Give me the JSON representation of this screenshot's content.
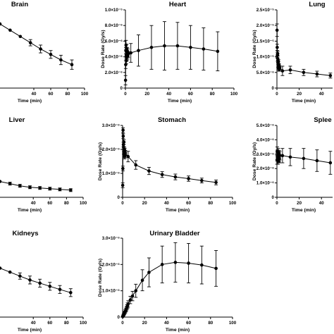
{
  "chart_data": [
    {
      "type": "scatter",
      "title": "Brain",
      "xlabel": "Time (min)",
      "ylabel": "",
      "xlim": [
        0,
        100
      ],
      "xticks": [
        40,
        60,
        80,
        100
      ],
      "ylim": [
        0,
        1.0
      ],
      "yticks": [],
      "yticklabels": [],
      "grid": false,
      "series": [
        {
          "x": [
            0,
            12,
            24,
            36,
            48,
            60,
            72,
            85
          ],
          "y": [
            0.82,
            0.74,
            0.66,
            0.58,
            0.5,
            0.43,
            0.36,
            0.3
          ],
          "err": [
            0,
            0,
            0,
            0.04,
            0.05,
            0.05,
            0.06,
            0.06
          ]
        }
      ]
    },
    {
      "type": "scatter",
      "title": "Heart",
      "xlabel": "Time (min)",
      "ylabel": "Dose Rate (Gy/s)",
      "xlim": [
        0,
        100
      ],
      "xticks": [
        0,
        20,
        40,
        60,
        80,
        100
      ],
      "ylim": [
        0,
        1.0
      ],
      "yticks": [
        0,
        0.2,
        0.4,
        0.6,
        0.8,
        1.0
      ],
      "yticklabels": [
        "0",
        "2.0×10⁻⁶",
        "4.0×10⁻⁶",
        "6.0×10⁻⁶",
        "8.0×10⁻⁶",
        "1.0×10⁻⁵"
      ],
      "grid": false,
      "series": [
        {
          "x": [
            0.1,
            0.25,
            0.4,
            0.55,
            0.7,
            0.85,
            1.0,
            1.2,
            1.4,
            1.6,
            1.8,
            2.0,
            2.2,
            2.5,
            5,
            12,
            24,
            36,
            48,
            60,
            72,
            85
          ],
          "y": [
            0.1,
            0.3,
            0.48,
            0.55,
            0.42,
            0.35,
            0.46,
            0.5,
            0.4,
            0.44,
            0.47,
            0.41,
            0.45,
            0.43,
            0.45,
            0.48,
            0.52,
            0.54,
            0.54,
            0.52,
            0.5,
            0.47
          ],
          "err": [
            0.06,
            0.05,
            0.04,
            0.06,
            0.05,
            0.04,
            0.05,
            0.06,
            0.05,
            0.04,
            0.05,
            0.04,
            0.05,
            0.04,
            0.12,
            0.2,
            0.28,
            0.31,
            0.3,
            0.28,
            0.27,
            0.25
          ]
        }
      ]
    },
    {
      "type": "scatter",
      "title": "Lung",
      "xlabel": "Time (min)",
      "ylabel": "Dose Rate (Gy/s)",
      "xlim": [
        0,
        50
      ],
      "xticks": [
        0,
        20,
        40
      ],
      "ylim": [
        0,
        2.5
      ],
      "yticks": [
        0,
        0.5,
        1.0,
        1.5,
        2.0,
        2.5
      ],
      "yticklabels": [
        "0",
        "5.0×10⁻⁶",
        "1.0×10⁻⁵",
        "1.5×10⁻⁵",
        "2.0×10⁻⁵",
        "2.5×10⁻⁵"
      ],
      "grid": false,
      "series": [
        {
          "x": [
            0.1,
            0.25,
            0.4,
            0.55,
            0.7,
            0.85,
            1.0,
            1.2,
            1.4,
            1.6,
            1.8,
            2.0,
            2.2,
            2.5,
            5,
            12,
            24,
            36,
            48
          ],
          "y": [
            1.85,
            1.3,
            1.05,
            0.95,
            1.1,
            0.88,
            0.75,
            0.7,
            0.85,
            0.62,
            0.66,
            0.72,
            0.6,
            0.65,
            0.55,
            0.58,
            0.5,
            0.45,
            0.4
          ],
          "err": [
            0.2,
            0.1,
            0.08,
            0.09,
            0.08,
            0.07,
            0.08,
            0.07,
            0.06,
            0.07,
            0.06,
            0.05,
            0.06,
            0.05,
            0.15,
            0.12,
            0.1,
            0.09,
            0.08
          ]
        }
      ]
    },
    {
      "type": "scatter",
      "title": "Liver",
      "xlabel": "Time (min)",
      "ylabel": "",
      "xlim": [
        0,
        100
      ],
      "xticks": [
        40,
        60,
        80,
        100
      ],
      "ylim": [
        0,
        1.0
      ],
      "yticks": [],
      "yticklabels": [],
      "grid": false,
      "series": [
        {
          "x": [
            0,
            12,
            24,
            36,
            48,
            60,
            72,
            85
          ],
          "y": [
            0.22,
            0.19,
            0.16,
            0.14,
            0.13,
            0.12,
            0.11,
            0.1
          ],
          "err": [
            0,
            0.02,
            0.02,
            0.02,
            0.02,
            0.02,
            0.02,
            0.02
          ]
        }
      ]
    },
    {
      "type": "scatter",
      "title": "Stomach",
      "xlabel": "Time (min)",
      "ylabel": "Dose Rate (Gy/s)",
      "xlim": [
        0,
        100
      ],
      "xticks": [
        0,
        20,
        40,
        60,
        80,
        100
      ],
      "ylim": [
        0,
        3.0
      ],
      "yticks": [
        0,
        1.0,
        2.0,
        3.0
      ],
      "yticklabels": [
        "0",
        "1.0×10⁻⁶",
        "2.0×10⁻⁶",
        "3.0×10⁻⁶"
      ],
      "grid": false,
      "series": [
        {
          "x": [
            0.1,
            0.25,
            0.4,
            0.55,
            0.7,
            0.85,
            1.0,
            1.2,
            1.4,
            1.6,
            1.8,
            2.0,
            2.2,
            2.5,
            5,
            12,
            24,
            36,
            48,
            60,
            72,
            85
          ],
          "y": [
            0.5,
            1.2,
            2.8,
            2.55,
            2.2,
            2.1,
            1.9,
            2.3,
            1.8,
            2.0,
            1.7,
            1.95,
            1.75,
            1.85,
            1.7,
            1.35,
            1.1,
            0.95,
            0.85,
            0.78,
            0.7,
            0.62
          ],
          "err": [
            0.1,
            0.1,
            0.1,
            0.1,
            0.1,
            0.1,
            0.1,
            0.1,
            0.1,
            0.1,
            0.1,
            0.1,
            0.1,
            0.1,
            0.22,
            0.18,
            0.15,
            0.12,
            0.12,
            0.11,
            0.1,
            0.1
          ]
        }
      ]
    },
    {
      "type": "scatter",
      "title": "Splee",
      "xlabel": "Time (min)",
      "ylabel": "Dose Rate (Gy/s)",
      "xlim": [
        0,
        50
      ],
      "xticks": [
        0,
        20,
        40
      ],
      "ylim": [
        0,
        5.0
      ],
      "yticks": [
        0,
        1.0,
        2.0,
        3.0,
        4.0,
        5.0
      ],
      "yticklabels": [
        "0",
        "1.0×10⁻⁶",
        "2.0×10⁻⁶",
        "3.0×10⁻⁶",
        "4.0×10⁻⁶",
        "5.0×10⁻⁶"
      ],
      "grid": false,
      "series": [
        {
          "x": [
            0.1,
            0.25,
            0.4,
            0.55,
            0.7,
            0.85,
            1.0,
            1.2,
            1.4,
            1.6,
            1.8,
            2.0,
            2.2,
            2.5,
            5,
            12,
            24,
            36,
            48
          ],
          "y": [
            2.6,
            3.2,
            2.8,
            3.0,
            2.7,
            2.9,
            2.6,
            3.1,
            2.85,
            2.75,
            2.95,
            2.8,
            2.7,
            2.9,
            2.9,
            2.8,
            2.7,
            2.55,
            2.4
          ],
          "err": [
            0.3,
            0.3,
            0.3,
            0.3,
            0.3,
            0.3,
            0.3,
            0.3,
            0.3,
            0.3,
            0.3,
            0.3,
            0.3,
            0.3,
            0.5,
            0.6,
            0.7,
            0.75,
            0.8
          ]
        }
      ]
    },
    {
      "type": "scatter",
      "title": "Kidneys",
      "xlabel": "Time (min)",
      "ylabel": "",
      "xlim": [
        0,
        100
      ],
      "xticks": [
        40,
        60,
        80,
        100
      ],
      "ylim": [
        0,
        1.0
      ],
      "yticks": [],
      "yticklabels": [],
      "grid": false,
      "series": [
        {
          "x": [
            0,
            12,
            24,
            36,
            48,
            60,
            72,
            85
          ],
          "y": [
            0.62,
            0.57,
            0.52,
            0.47,
            0.43,
            0.39,
            0.35,
            0.31
          ],
          "err": [
            0,
            0,
            0.04,
            0.05,
            0.05,
            0.05,
            0.05,
            0.05
          ]
        }
      ]
    },
    {
      "type": "scatter",
      "title": "Urinary Bladder",
      "xlabel": "Time (min)",
      "ylabel": "Dose Rate (Gy/s)",
      "xlim": [
        0,
        100
      ],
      "xticks": [
        0,
        20,
        40,
        60,
        80,
        100
      ],
      "ylim": [
        0,
        3.0
      ],
      "yticks": [
        0,
        1.0,
        2.0,
        3.0
      ],
      "yticklabels": [
        "0",
        "1.0×10⁻⁶",
        "2.0×10⁻⁶",
        "3.0×10⁻⁶"
      ],
      "grid": false,
      "series": [
        {
          "x": [
            0.2,
            0.5,
            0.8,
            1.1,
            1.5,
            2.0,
            2.5,
            3.0,
            3.5,
            4.0,
            4.5,
            5,
            7,
            9,
            12,
            18,
            24,
            36,
            48,
            60,
            72,
            85
          ],
          "y": [
            0.02,
            0.05,
            0.08,
            0.11,
            0.14,
            0.18,
            0.22,
            0.27,
            0.32,
            0.38,
            0.44,
            0.5,
            0.65,
            0.8,
            1.0,
            1.4,
            1.7,
            2.0,
            2.08,
            2.05,
            1.98,
            1.85
          ],
          "err": [
            0.02,
            0.03,
            0.03,
            0.04,
            0.05,
            0.05,
            0.06,
            0.07,
            0.08,
            0.09,
            0.1,
            0.12,
            0.14,
            0.18,
            0.25,
            0.4,
            0.55,
            0.7,
            0.75,
            0.75,
            0.72,
            0.68
          ]
        }
      ]
    }
  ]
}
